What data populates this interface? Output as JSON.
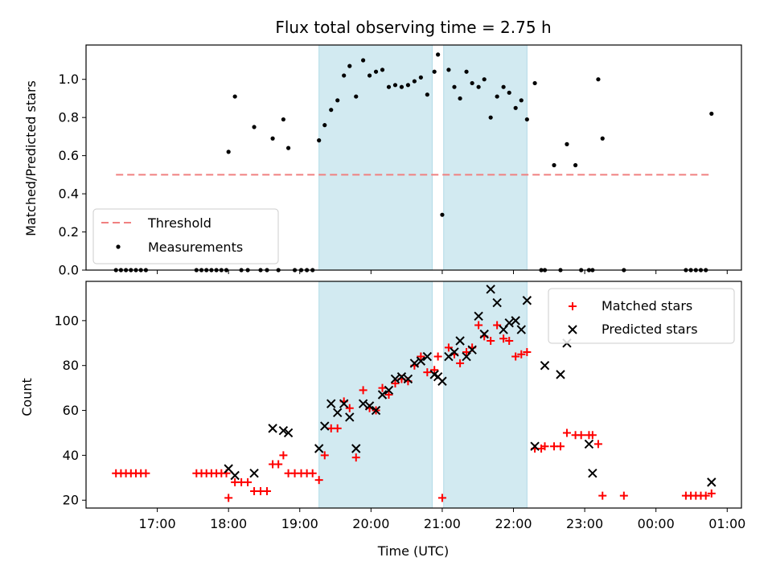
{
  "chart_data": [
    {
      "type": "scatter",
      "title": "Flux total observing time = 2.75 h",
      "xlabel": "",
      "ylabel": "Matched/Predicted stars",
      "xlim": [
        16.0,
        25.2
      ],
      "ylim": [
        0.0,
        1.18
      ],
      "yticks": [
        0.0,
        0.2,
        0.4,
        0.6,
        0.8,
        1.0
      ],
      "ytick_labels": [
        "0.0",
        "0.2",
        "0.4",
        "0.6",
        "0.8",
        "1.0"
      ],
      "shaded_spans": [
        [
          19.27,
          20.86
        ],
        [
          21.02,
          22.19
        ]
      ],
      "shade_color": "#add8e6",
      "threshold": {
        "name": "Threshold",
        "value": 0.5,
        "x": [
          16.42,
          24.75
        ],
        "color": "#f08080",
        "style": "dashed"
      },
      "series": [
        {
          "name": "Measurements",
          "color": "#000000",
          "marker": "dot",
          "x": [
            16.42,
            16.49,
            16.56,
            16.63,
            16.7,
            16.77,
            16.84,
            17.55,
            17.62,
            17.69,
            17.76,
            17.83,
            17.9,
            17.97,
            18.0,
            18.09,
            18.18,
            18.27,
            18.36,
            18.45,
            18.54,
            18.62,
            18.7,
            18.77,
            18.84,
            18.93,
            19.02,
            19.1,
            19.18,
            19.27,
            19.35,
            19.44,
            19.53,
            19.62,
            19.7,
            19.79,
            19.89,
            19.98,
            20.07,
            20.16,
            20.25,
            20.34,
            20.43,
            20.52,
            20.61,
            20.7,
            20.79,
            20.89,
            20.94,
            21.0,
            21.09,
            21.17,
            21.25,
            21.34,
            21.42,
            21.51,
            21.59,
            21.68,
            21.77,
            21.86,
            21.94,
            22.03,
            22.11,
            22.19,
            22.3,
            22.39,
            22.44,
            22.57,
            22.66,
            22.75,
            22.87,
            22.95,
            23.06,
            23.11,
            23.19,
            23.25,
            23.55,
            24.42,
            24.49,
            24.56,
            24.63,
            24.7,
            24.78
          ],
          "y": [
            0.0,
            0.0,
            0.0,
            0.0,
            0.0,
            0.0,
            0.0,
            0.0,
            0.0,
            0.0,
            0.0,
            0.0,
            0.0,
            0.0,
            0.62,
            0.91,
            0.0,
            0.0,
            0.75,
            0.0,
            0.0,
            0.69,
            0.0,
            0.79,
            0.64,
            0.0,
            0.0,
            0.0,
            0.0,
            0.68,
            0.76,
            0.84,
            0.89,
            1.02,
            1.07,
            0.91,
            1.1,
            1.02,
            1.04,
            1.05,
            0.96,
            0.97,
            0.96,
            0.97,
            0.99,
            1.01,
            0.92,
            1.04,
            1.13,
            0.29,
            1.05,
            0.96,
            0.9,
            1.04,
            0.98,
            0.96,
            1.0,
            0.8,
            0.91,
            0.96,
            0.93,
            0.85,
            0.89,
            0.79,
            0.98,
            0.0,
            0.0,
            0.55,
            0.0,
            0.66,
            0.55,
            0.0,
            0.0,
            0.0,
            1.0,
            0.69,
            0.0,
            0.0,
            0.0,
            0.0,
            0.0,
            0.0,
            0.82
          ]
        }
      ],
      "legend": {
        "placement": "lower-left",
        "entries": [
          "Threshold",
          "Measurements"
        ]
      }
    },
    {
      "type": "scatter",
      "title": "",
      "xlabel": "Time (UTC)",
      "ylabel": "Count",
      "xlim": [
        16.0,
        25.2
      ],
      "ylim": [
        16.5,
        117.5
      ],
      "yticks": [
        20,
        40,
        60,
        80,
        100
      ],
      "ytick_labels": [
        "20",
        "40",
        "60",
        "80",
        "100"
      ],
      "xticks": [
        17,
        18,
        19,
        20,
        21,
        22,
        23,
        24,
        25
      ],
      "xtick_labels": [
        "17:00",
        "18:00",
        "19:00",
        "20:00",
        "21:00",
        "22:00",
        "23:00",
        "00:00",
        "01:00"
      ],
      "shaded_spans": [
        [
          19.27,
          20.86
        ],
        [
          21.02,
          22.19
        ]
      ],
      "shade_color": "#add8e6",
      "series": [
        {
          "name": "Matched stars",
          "color": "#ff0000",
          "marker": "plus",
          "x": [
            16.42,
            16.49,
            16.56,
            16.63,
            16.7,
            16.77,
            16.84,
            17.55,
            17.62,
            17.69,
            17.76,
            17.83,
            17.9,
            17.97,
            18.0,
            18.09,
            18.18,
            18.27,
            18.36,
            18.45,
            18.54,
            18.62,
            18.7,
            18.77,
            18.84,
            18.93,
            19.02,
            19.1,
            19.18,
            19.27,
            19.35,
            19.44,
            19.53,
            19.62,
            19.7,
            19.79,
            19.89,
            19.98,
            20.07,
            20.16,
            20.25,
            20.34,
            20.43,
            20.52,
            20.61,
            20.7,
            20.79,
            20.89,
            20.94,
            21.0,
            21.09,
            21.17,
            21.25,
            21.34,
            21.42,
            21.51,
            21.59,
            21.68,
            21.77,
            21.86,
            21.94,
            22.03,
            22.11,
            22.19,
            22.3,
            22.39,
            22.44,
            22.57,
            22.66,
            22.75,
            22.87,
            22.95,
            23.06,
            23.11,
            23.19,
            23.25,
            23.55,
            24.42,
            24.49,
            24.56,
            24.63,
            24.7,
            24.78
          ],
          "y": [
            32,
            32,
            32,
            32,
            32,
            32,
            32,
            32,
            32,
            32,
            32,
            32,
            32,
            32,
            21,
            28,
            28,
            28,
            24,
            24,
            24,
            36,
            36,
            40,
            32,
            32,
            32,
            32,
            32,
            29,
            40,
            52,
            52,
            64,
            61,
            39,
            69,
            61,
            60,
            70,
            67,
            72,
            74,
            73,
            80,
            84,
            77,
            78,
            84,
            21,
            88,
            85,
            81,
            86,
            88,
            98,
            93,
            91,
            98,
            92,
            91,
            84,
            85,
            86,
            43,
            43,
            44,
            44,
            44,
            50,
            49,
            49,
            49,
            49,
            45,
            22,
            22,
            22,
            22,
            22,
            22,
            22,
            23
          ]
        },
        {
          "name": "Predicted stars",
          "color": "#000000",
          "marker": "x",
          "x": [
            18.0,
            18.09,
            18.36,
            18.62,
            18.77,
            18.84,
            19.27,
            19.35,
            19.44,
            19.53,
            19.62,
            19.7,
            19.79,
            19.89,
            19.98,
            20.07,
            20.16,
            20.25,
            20.34,
            20.43,
            20.52,
            20.61,
            20.7,
            20.79,
            20.89,
            20.94,
            21.0,
            21.09,
            21.17,
            21.25,
            21.34,
            21.42,
            21.51,
            21.59,
            21.68,
            21.77,
            21.86,
            21.94,
            22.03,
            22.11,
            22.19,
            22.3,
            22.44,
            22.66,
            22.75,
            23.06,
            23.11,
            24.78
          ],
          "y": [
            34,
            31,
            32,
            52,
            51,
            50,
            43,
            53,
            63,
            59,
            63,
            57,
            43,
            63,
            62,
            60,
            67,
            69,
            74,
            75,
            74,
            81,
            82,
            84,
            76,
            75,
            73,
            84,
            86,
            91,
            84,
            87,
            102,
            94,
            114,
            108,
            96,
            99,
            100,
            96,
            109,
            44,
            80,
            76,
            90,
            45,
            32,
            28
          ]
        }
      ],
      "legend": {
        "placement": "top-right",
        "entries": [
          "Matched stars",
          "Predicted stars"
        ]
      }
    }
  ]
}
